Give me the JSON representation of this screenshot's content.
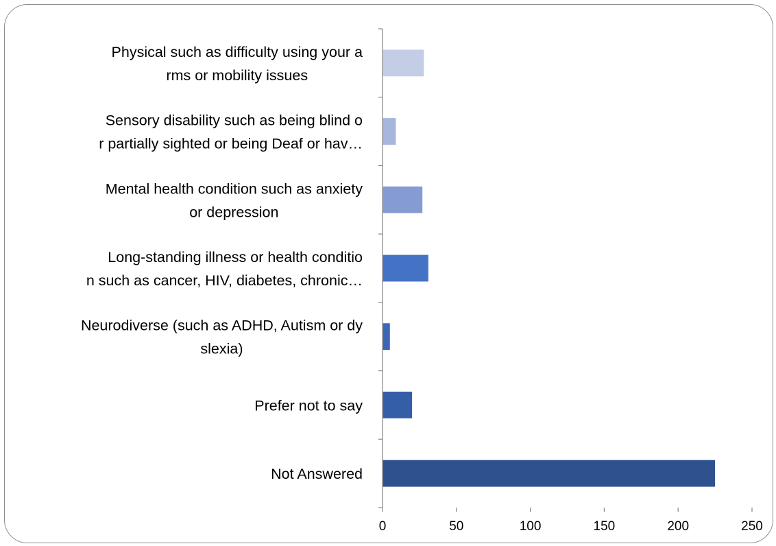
{
  "chart_data": {
    "type": "bar",
    "orientation": "horizontal",
    "title": "",
    "xlabel": "",
    "ylabel": "",
    "xlim": [
      0,
      250
    ],
    "xticks": [
      0,
      50,
      100,
      150,
      200,
      250
    ],
    "grid": false,
    "categories": [
      {
        "label": [
          "Physical such as difficulty using your a",
          "rms or mobility issues"
        ],
        "value": 28,
        "color": "#c3cde6"
      },
      {
        "label": [
          "Sensory disability such as being blind o",
          "r partially sighted or being Deaf or hav…"
        ],
        "value": 9,
        "color": "#a6b6dc"
      },
      {
        "label": [
          "Mental health condition such as anxiety",
          "or depression"
        ],
        "value": 27,
        "color": "#859cd2"
      },
      {
        "label": [
          "Long-standing illness or health conditio",
          "n such as cancer, HIV, diabetes, chronic…"
        ],
        "value": 31,
        "color": "#4472c4"
      },
      {
        "label": [
          "Neurodiverse (such as ADHD, Autism or dy",
          "slexia)"
        ],
        "value": 5,
        "color": "#3d67b5"
      },
      {
        "label": [
          "Prefer not to say"
        ],
        "value": 20,
        "color": "#355ea8"
      },
      {
        "label": [
          "Not Answered"
        ],
        "value": 225,
        "color": "#2f528f"
      }
    ]
  }
}
